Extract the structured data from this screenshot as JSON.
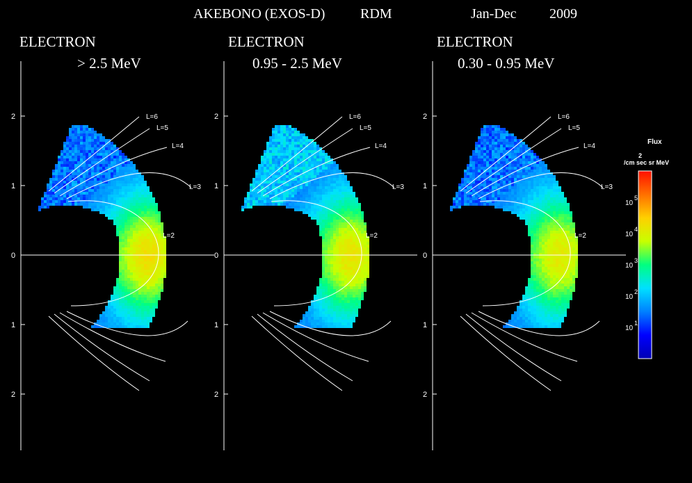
{
  "header": {
    "mission": "AKEBONO (EXOS-D)",
    "instrument": "RDM",
    "period": "Jan-Dec",
    "year": "2009"
  },
  "chart_data": [
    {
      "type": "heatmap",
      "species": "ELECTRON",
      "energy": "> 2.5 MeV",
      "y_ticks": [
        "2",
        "1",
        "0",
        "1",
        "2"
      ],
      "l_shells": [
        "L=6",
        "L=5",
        "L=4",
        "L=3",
        "L=2"
      ],
      "peak_log_flux": 4.3
    },
    {
      "type": "heatmap",
      "species": "ELECTRON",
      "energy": "0.95 - 2.5 MeV",
      "y_ticks": [
        "2",
        "1",
        "0",
        "1",
        "2"
      ],
      "l_shells": [
        "L=6",
        "L=5",
        "L=4",
        "L=3",
        "L=2"
      ],
      "peak_log_flux": 4.2
    },
    {
      "type": "heatmap",
      "species": "ELECTRON",
      "energy": "0.30 - 0.95 MeV",
      "y_ticks": [
        "2",
        "1",
        "0",
        "1",
        "2"
      ],
      "l_shells": [
        "L=6",
        "L=5",
        "L=4",
        "L=3",
        "L=2"
      ],
      "peak_log_flux": 4.1
    }
  ],
  "colorbar": {
    "title": "Flux",
    "unit_exponent": "2",
    "unit": "/cm sec sr MeV",
    "ticks": [
      {
        "base": "10",
        "exp": "1",
        "value": 1
      },
      {
        "base": "10",
        "exp": "2",
        "value": 2
      },
      {
        "base": "10",
        "exp": "3",
        "value": 3
      },
      {
        "base": "10",
        "exp": "4",
        "value": 4
      },
      {
        "base": "10",
        "exp": "5",
        "value": 5
      }
    ],
    "range_log": [
      0.0,
      6.0
    ],
    "colormap": [
      "#0000b4",
      "#0000ff",
      "#0080ff",
      "#00e0ff",
      "#00ff80",
      "#c8ff00",
      "#ffd000",
      "#ff7000",
      "#ff1000"
    ]
  }
}
